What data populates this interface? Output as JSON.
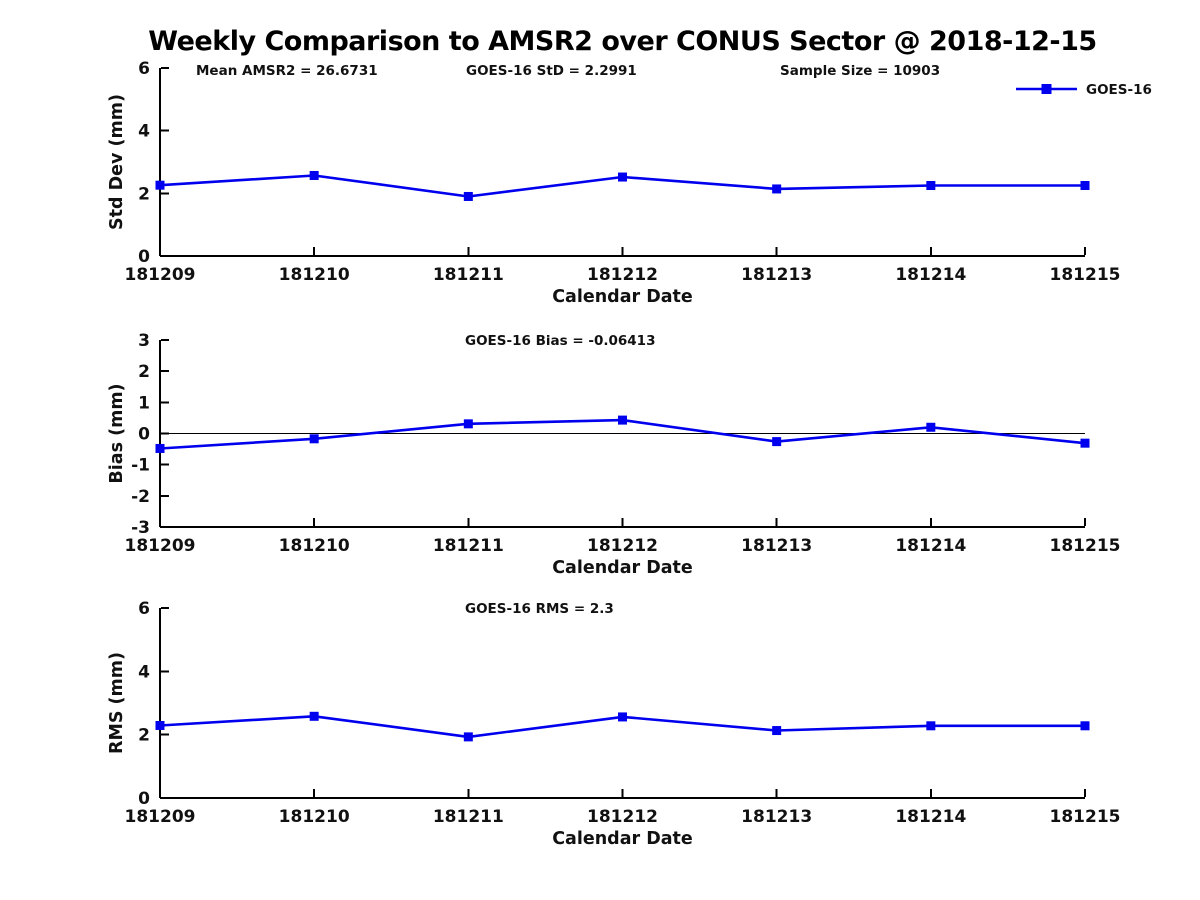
{
  "title": "Weekly Comparison to AMSR2 over CONUS Sector @ 2018-12-15",
  "colors": {
    "series": "#0000EE",
    "axis": "#000000",
    "text": "#111111",
    "zero_line": "#000000",
    "background": "#ffffff"
  },
  "legend": {
    "label": "GOES-16",
    "position": "top-right"
  },
  "chart_data": [
    {
      "type": "line",
      "ylabel": "Std Dev (mm)",
      "xlabel": "Calendar Date",
      "ylim": [
        0,
        6
      ],
      "yticks": [
        0,
        2,
        4,
        6
      ],
      "grid": "off",
      "categories": [
        "181209",
        "181210",
        "181211",
        "181212",
        "181213",
        "181214",
        "181215"
      ],
      "annotations": [
        {
          "text": "Mean AMSR2 = 26.6731",
          "x": 196
        },
        {
          "text": "GOES-16 StD = 2.2991",
          "x": 466
        },
        {
          "text": "Sample Size = 10903",
          "x": 780
        }
      ],
      "series": [
        {
          "name": "GOES-16",
          "values": [
            2.26,
            2.57,
            1.9,
            2.52,
            2.14,
            2.25,
            2.25
          ]
        }
      ],
      "zero_line": false,
      "show_legend": true
    },
    {
      "type": "line",
      "ylabel": "Bias (mm)",
      "xlabel": "Calendar Date",
      "ylim": [
        -3,
        3
      ],
      "yticks": [
        3,
        2,
        1,
        0,
        -1,
        -2,
        -3
      ],
      "grid": "off",
      "categories": [
        "181209",
        "181210",
        "181211",
        "181212",
        "181213",
        "181214",
        "181215"
      ],
      "annotations": [
        {
          "text": "GOES-16 Bias  = -0.06413",
          "x": 465
        }
      ],
      "series": [
        {
          "name": "GOES-16",
          "values": [
            -0.48,
            -0.17,
            0.31,
            0.43,
            -0.26,
            0.2,
            -0.31
          ]
        }
      ],
      "zero_line": true,
      "show_legend": false
    },
    {
      "type": "line",
      "ylabel": "RMS (mm)",
      "xlabel": "Calendar Date",
      "ylim": [
        0,
        6
      ],
      "yticks": [
        0,
        2,
        4,
        6
      ],
      "grid": "off",
      "categories": [
        "181209",
        "181210",
        "181211",
        "181212",
        "181213",
        "181214",
        "181215"
      ],
      "annotations": [
        {
          "text": "GOES-16 RMS = 2.3",
          "x": 465
        }
      ],
      "series": [
        {
          "name": "GOES-16",
          "values": [
            2.29,
            2.58,
            1.93,
            2.56,
            2.13,
            2.28,
            2.28
          ]
        }
      ],
      "zero_line": false,
      "show_legend": false
    }
  ]
}
